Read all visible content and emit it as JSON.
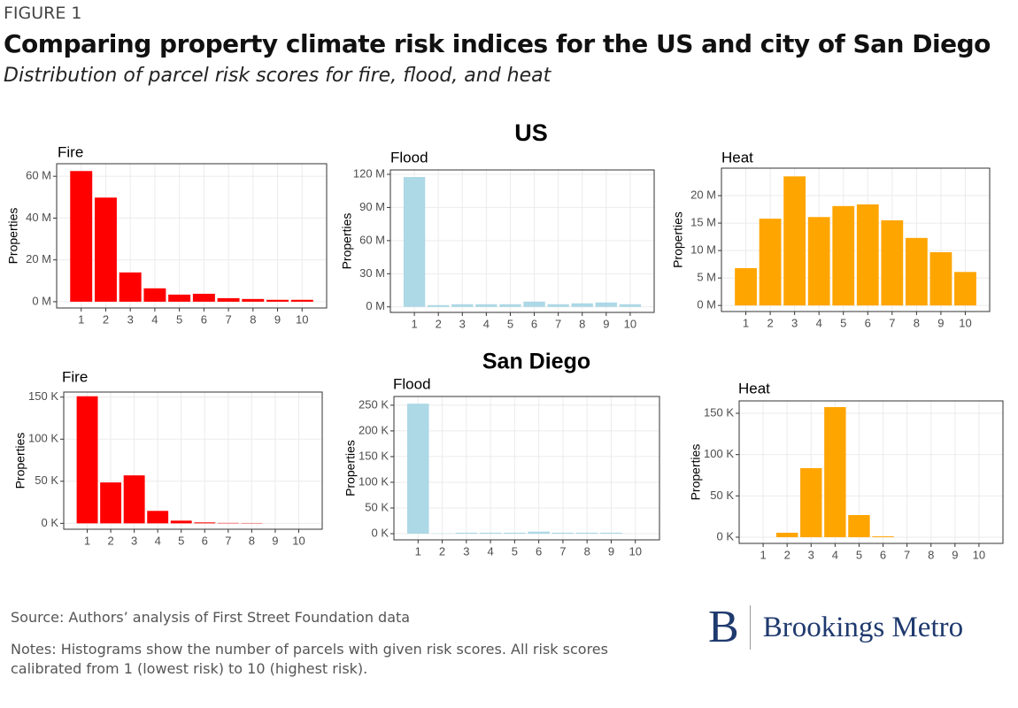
{
  "figure_label": "FIGURE 1",
  "title": "Comparing property climate risk indices for the US and city of San Diego",
  "subtitle": "Distribution of parcel risk scores for fire, flood, and heat",
  "sections": [
    "US",
    "San Diego"
  ],
  "source": "Source: Authors’ analysis of First Street Foundation data",
  "notes": "Notes: Histograms show the number of parcels with given risk scores. All risk scores calibrated from 1 (lowest risk) to 10 (highest risk).",
  "logo": {
    "mark": "B",
    "name": "Brookings Metro"
  },
  "chart_data": [
    {
      "type": "bar",
      "title": "Fire",
      "ylabel": "Properties",
      "color": "#ff0000",
      "grid": true,
      "categories": [
        "1",
        "2",
        "3",
        "4",
        "5",
        "6",
        "7",
        "8",
        "9",
        "10"
      ],
      "values": [
        62.5,
        49.8,
        14,
        6.4,
        3.4,
        3.8,
        1.7,
        1.3,
        0.9,
        0.9
      ],
      "ylim": [
        -3,
        66
      ],
      "yticks": [
        {
          "value": 0,
          "label": "0 M"
        },
        {
          "value": 20,
          "label": "20 M"
        },
        {
          "value": 40,
          "label": "40 M"
        },
        {
          "value": 60,
          "label": "60 M"
        }
      ]
    },
    {
      "type": "bar",
      "title": "Flood",
      "ylabel": "Properties",
      "color": "#add8e6",
      "grid": true,
      "categories": [
        "1",
        "2",
        "3",
        "4",
        "5",
        "6",
        "7",
        "8",
        "9",
        "10"
      ],
      "values": [
        117.6,
        1.6,
        2.4,
        2.4,
        2.4,
        4.8,
        2.4,
        3.2,
        4,
        2.4
      ],
      "ylim": [
        -5,
        124
      ],
      "yticks": [
        {
          "value": 0,
          "label": "0 M"
        },
        {
          "value": 30,
          "label": "30 M"
        },
        {
          "value": 60,
          "label": "60 M"
        },
        {
          "value": 90,
          "label": "90 M"
        },
        {
          "value": 120,
          "label": "120 M"
        }
      ]
    },
    {
      "type": "bar",
      "title": "Heat",
      "ylabel": "Properties",
      "color": "#ffa500",
      "grid": true,
      "categories": [
        "1",
        "2",
        "3",
        "4",
        "5",
        "6",
        "7",
        "8",
        "9",
        "10"
      ],
      "values": [
        6.8,
        15.8,
        23.5,
        16.1,
        18.1,
        18.4,
        15.5,
        12.3,
        9.7,
        6.1
      ],
      "ylim": [
        -1.1,
        25
      ],
      "yticks": [
        {
          "value": 0,
          "label": "0 M"
        },
        {
          "value": 5,
          "label": "5 M"
        },
        {
          "value": 10,
          "label": "10 M"
        },
        {
          "value": 15,
          "label": "15 M"
        },
        {
          "value": 20,
          "label": "20 M"
        }
      ]
    },
    {
      "type": "bar",
      "title": "Fire",
      "ylabel": "Properties",
      "color": "#ff0000",
      "grid": true,
      "categories": [
        "1",
        "2",
        "3",
        "4",
        "5",
        "6",
        "7",
        "8",
        "9",
        "10"
      ],
      "values": [
        151,
        48.6,
        57,
        14.8,
        3.2,
        1.1,
        0.5,
        0.4,
        0,
        0
      ],
      "ylim": [
        -7,
        156
      ],
      "yticks": [
        {
          "value": 0,
          "label": "0 K"
        },
        {
          "value": 50,
          "label": "50 K"
        },
        {
          "value": 100,
          "label": "100 K"
        },
        {
          "value": 150,
          "label": "150 K"
        }
      ]
    },
    {
      "type": "bar",
      "title": "Flood",
      "ylabel": "Properties",
      "color": "#add8e6",
      "grid": true,
      "categories": [
        "1",
        "2",
        "3",
        "4",
        "5",
        "6",
        "7",
        "8",
        "9",
        "10"
      ],
      "values": [
        253,
        0.5,
        2,
        2,
        2,
        4,
        2,
        2,
        2,
        0
      ],
      "ylim": [
        -12,
        267
      ],
      "yticks": [
        {
          "value": 0,
          "label": "0 K"
        },
        {
          "value": 50,
          "label": "50 K"
        },
        {
          "value": 100,
          "label": "100 K"
        },
        {
          "value": 150,
          "label": "150 K"
        },
        {
          "value": 200,
          "label": "200 K"
        },
        {
          "value": 250,
          "label": "250 K"
        }
      ]
    },
    {
      "type": "bar",
      "title": "Heat",
      "ylabel": "Properties",
      "color": "#ffa500",
      "grid": true,
      "categories": [
        "1",
        "2",
        "3",
        "4",
        "5",
        "6",
        "7",
        "8",
        "9",
        "10"
      ],
      "values": [
        0,
        5.4,
        83.6,
        157.5,
        26.8,
        1,
        0,
        0,
        0,
        0
      ],
      "ylim": [
        -7.5,
        165
      ],
      "yticks": [
        {
          "value": 0,
          "label": "0 K"
        },
        {
          "value": 50,
          "label": "50 K"
        },
        {
          "value": 100,
          "label": "100 K"
        },
        {
          "value": 150,
          "label": "150 K"
        }
      ]
    }
  ]
}
